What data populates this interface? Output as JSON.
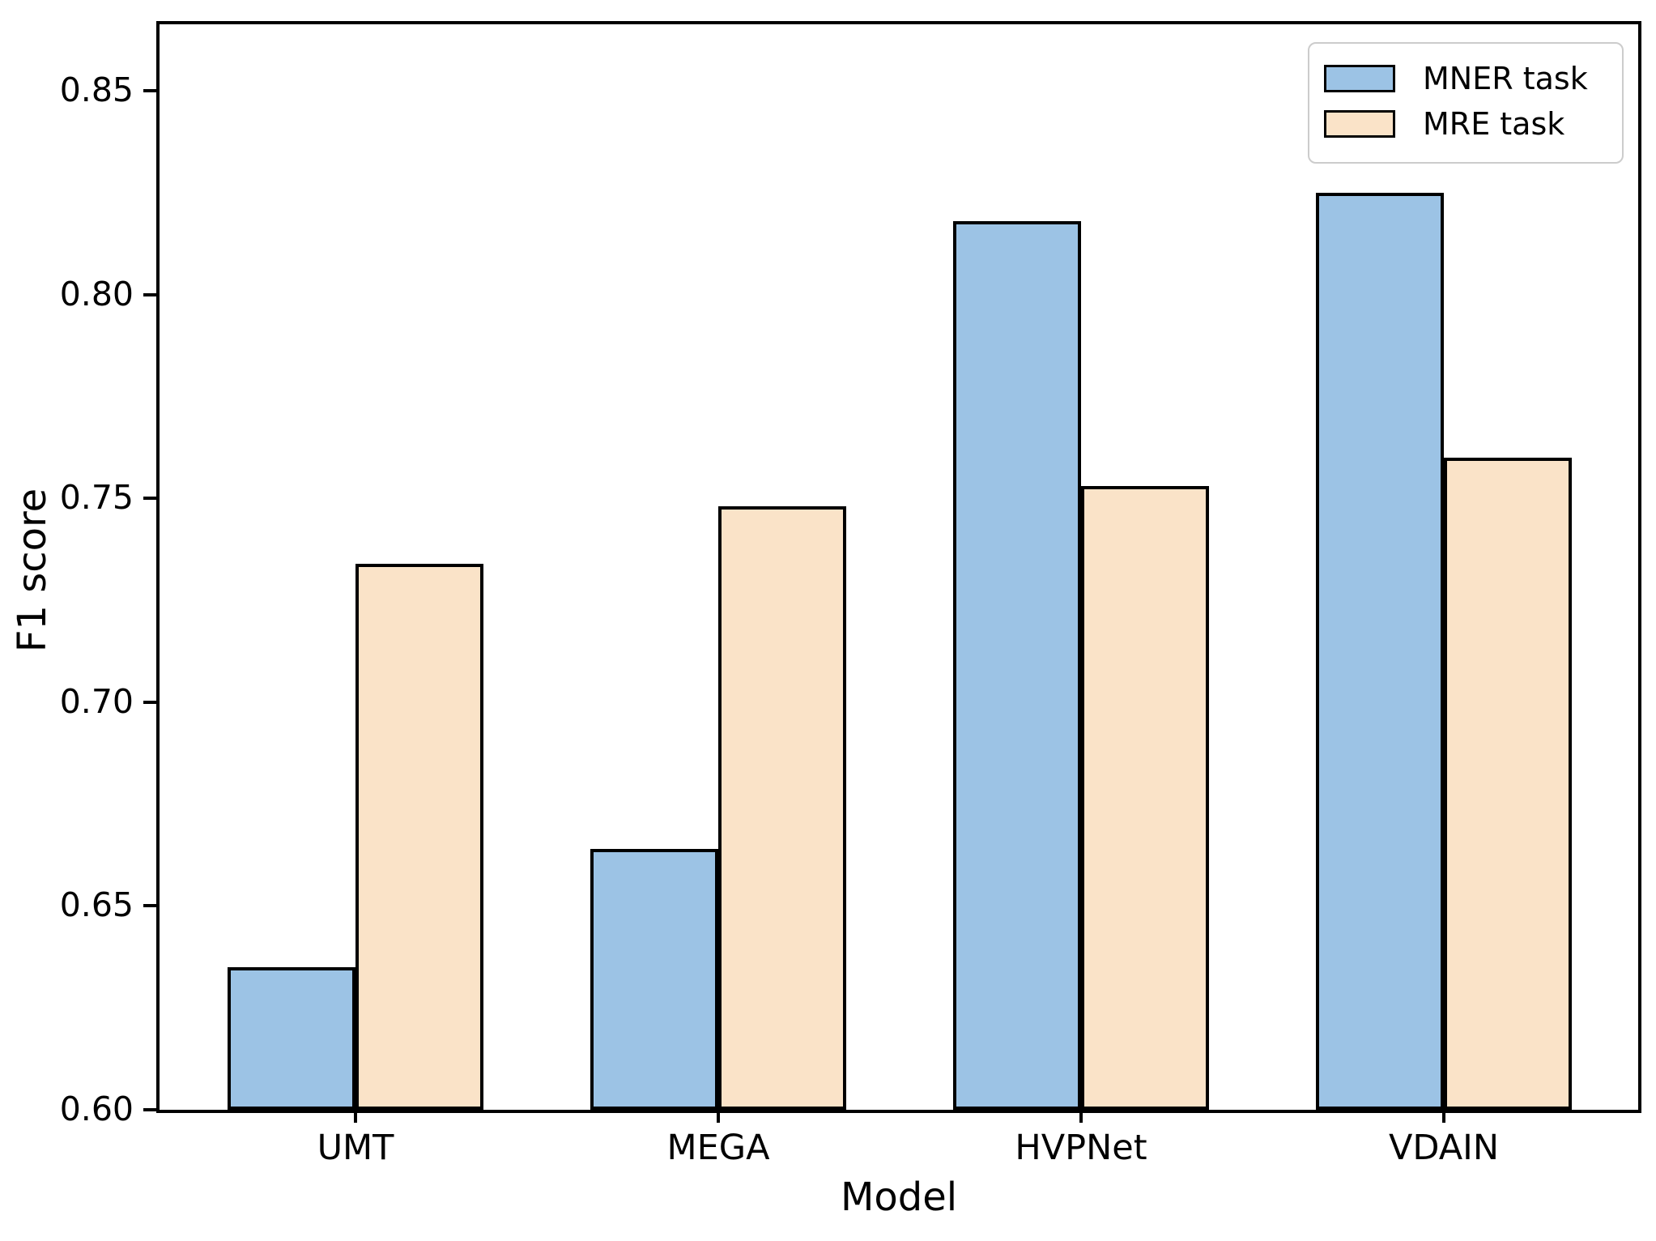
{
  "figure": {
    "background_color": "#ffffff",
    "frame_color": "#000000"
  },
  "chart_data": {
    "type": "bar",
    "title": "",
    "xlabel": "Model",
    "ylabel": "F1 score",
    "categories": [
      "UMT",
      "MEGA",
      "HVPNet",
      "VDAIN"
    ],
    "series": [
      {
        "name": "MNER task",
        "color": "#9cc3e5",
        "values": [
          0.635,
          0.664,
          0.818,
          0.825
        ]
      },
      {
        "name": "MRE task",
        "color": "#fae3c8",
        "values": [
          0.734,
          0.748,
          0.753,
          0.76
        ]
      }
    ],
    "ylim": [
      0.6,
      0.8663
    ],
    "yticks": [
      0.6,
      0.65,
      0.7,
      0.75,
      0.8,
      0.85
    ],
    "ytick_labels": [
      "0.60",
      "0.65",
      "0.70",
      "0.75",
      "0.80",
      "0.85"
    ],
    "bar_edge_color": "#000000",
    "legend_position": "upper right",
    "legend_entries": [
      "MNER task",
      "MRE task"
    ],
    "grid": false
  }
}
